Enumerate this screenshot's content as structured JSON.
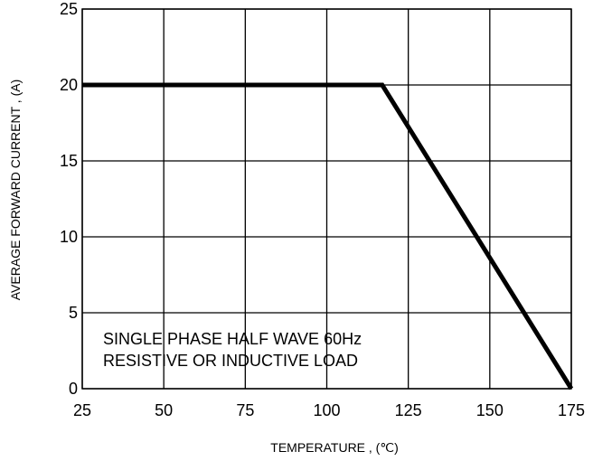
{
  "chart_data": {
    "type": "line",
    "xlabel": "TEMPERATURE , (℃)",
    "ylabel": "AVERAGE FORWARD CURRENT , (A)",
    "xlim": [
      25,
      175
    ],
    "ylim": [
      0,
      25
    ],
    "x_ticks": [
      25,
      50,
      75,
      100,
      125,
      150,
      175
    ],
    "y_ticks": [
      0,
      5,
      10,
      15,
      20,
      25
    ],
    "grid": true,
    "annotations": [
      "SINGLE PHASE HALF WAVE 60Hz",
      "RESISTIVE OR INDUCTIVE LOAD"
    ],
    "series": [
      {
        "x": [
          25,
          117,
          175
        ],
        "y": [
          20,
          20,
          0
        ],
        "color": "#000000"
      }
    ]
  }
}
